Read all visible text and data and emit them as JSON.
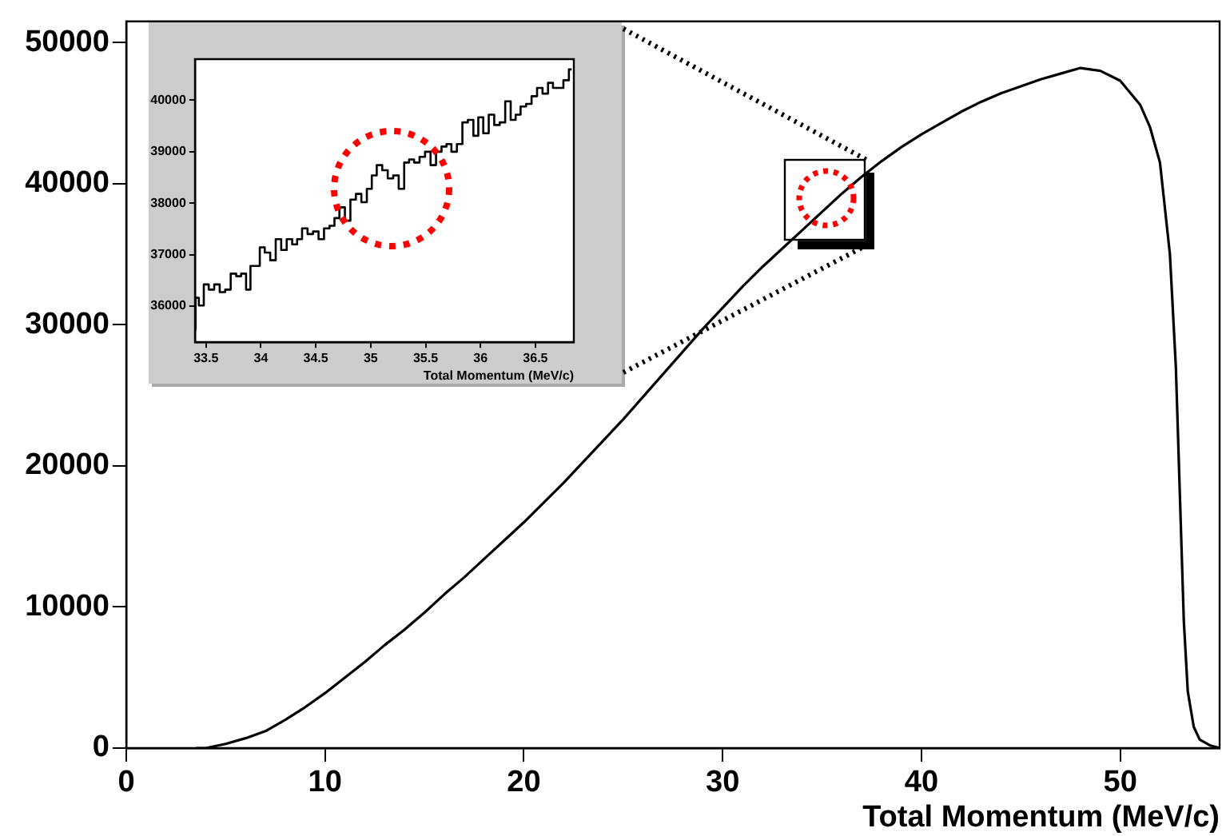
{
  "chart_data": [
    {
      "type": "line",
      "xlabel": "Total Momentum (MeV/c)",
      "xlim": [
        0,
        55
      ],
      "xticks": [
        0,
        10,
        20,
        30,
        40,
        50
      ],
      "ylim": [
        0,
        51500
      ],
      "yticks": [
        0,
        10000,
        20000,
        30000,
        40000,
        50000
      ],
      "grid": false,
      "legend": false,
      "marker": "none",
      "series": [
        {
          "color": "#000000",
          "x": [
            3.5,
            4,
            5,
            6,
            7,
            8,
            9,
            10,
            11,
            12,
            13,
            14,
            15,
            16,
            17,
            18,
            19,
            20,
            21,
            22,
            23,
            24,
            25,
            26,
            27,
            28,
            29,
            30,
            31,
            32,
            33,
            34,
            35,
            36,
            37,
            38,
            39,
            40,
            41,
            42,
            43,
            44,
            45,
            46,
            47,
            48,
            49,
            50,
            51,
            51.5,
            52,
            52.5,
            52.8,
            53,
            53.2,
            53.4,
            53.7,
            54,
            54.5,
            55
          ],
          "values": [
            0,
            0,
            300,
            700,
            1200,
            2000,
            2900,
            3900,
            5000,
            6100,
            7300,
            8400,
            9600,
            10900,
            12100,
            13400,
            14700,
            16000,
            17400,
            18800,
            20300,
            21800,
            23300,
            24900,
            26500,
            28100,
            29700,
            31200,
            32700,
            34100,
            35400,
            36700,
            38000,
            39300,
            40500,
            41600,
            42600,
            43500,
            44300,
            45100,
            45800,
            46400,
            46900,
            47400,
            47800,
            48200,
            48000,
            47300,
            45600,
            44000,
            41500,
            35000,
            27000,
            18000,
            9000,
            4000,
            1500,
            600,
            200,
            0
          ]
        }
      ]
    },
    {
      "type": "step",
      "xlabel": "Total Momentum (MeV/c)",
      "xlim": [
        33.4,
        36.85
      ],
      "xticks": [
        33.5,
        34,
        34.5,
        35,
        35.5,
        36,
        36.5
      ],
      "ylim": [
        35300,
        40800
      ],
      "yticks": [
        36000,
        37000,
        38000,
        39000,
        40000
      ],
      "grid": false,
      "legend": false,
      "marker": "none",
      "series": [
        {
          "color": "#000000",
          "x": [
            33.4,
            33.41,
            33.46,
            33.5,
            33.55,
            33.6,
            33.65,
            33.7,
            33.75,
            33.8,
            33.84,
            33.89,
            33.92,
            33.97,
            34.01,
            34.06,
            34.11,
            34.16,
            34.21,
            34.26,
            34.31,
            34.35,
            34.4,
            34.45,
            34.5,
            34.55,
            34.6,
            34.65,
            34.69,
            34.74,
            34.79,
            34.84,
            34.89,
            34.94,
            34.99,
            35.03,
            35.08,
            35.13,
            35.18,
            35.23,
            35.28,
            35.33,
            35.37,
            35.42,
            35.47,
            35.52,
            35.57,
            35.62,
            35.67,
            35.71,
            35.76,
            35.81,
            35.86,
            35.91,
            35.96,
            36,
            36.05,
            36.1,
            36.15,
            36.2,
            36.25,
            36.3,
            36.34,
            36.39,
            36.44,
            36.49,
            36.54,
            36.59,
            36.64,
            36.68,
            36.73,
            36.78,
            36.83
          ],
          "values": [
            35550,
            36160,
            36010,
            36420,
            36320,
            36420,
            36270,
            36320,
            36630,
            36580,
            36630,
            36320,
            36780,
            36780,
            37140,
            37040,
            36890,
            37300,
            37090,
            37300,
            37200,
            37300,
            37510,
            37400,
            37450,
            37300,
            37510,
            37560,
            37710,
            37920,
            37660,
            38070,
            38180,
            38020,
            38280,
            38540,
            38740,
            38640,
            38480,
            38540,
            38280,
            38790,
            38850,
            38790,
            38900,
            39000,
            38740,
            39000,
            39100,
            39150,
            39000,
            39150,
            39570,
            39620,
            39310,
            39670,
            39360,
            39720,
            39520,
            39570,
            39980,
            39620,
            39720,
            39880,
            39930,
            40080,
            40240,
            40130,
            40340,
            40240,
            40240,
            40390,
            40600
          ]
        }
      ]
    }
  ]
}
